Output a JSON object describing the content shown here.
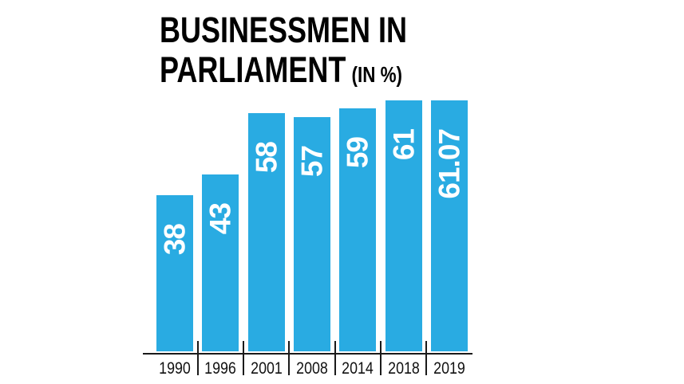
{
  "title": {
    "line1": "BUSINESSMEN IN",
    "line2": "PARLIAMENT",
    "suffix": "(IN %)"
  },
  "chart_data": {
    "type": "bar",
    "title": "BUSINESSMEN IN PARLIAMENT (IN %)",
    "categories": [
      "1990",
      "1996",
      "2001",
      "2008",
      "2014",
      "2018",
      "2019"
    ],
    "values": [
      38,
      43,
      58,
      57,
      59,
      61,
      61.07
    ],
    "value_labels": [
      "38",
      "43",
      "58",
      "57",
      "59",
      "61",
      "61.07"
    ],
    "xlabel": "",
    "ylabel": "",
    "ylim": [
      0,
      65
    ],
    "grid": false,
    "legend": false,
    "orientation": "vertical",
    "value_label_rotation": -90,
    "colors": {
      "bar": "#29abe2",
      "value_label": "#ffffff",
      "axis": "#1a1a1a",
      "title": "#000000",
      "background": "#ffffff"
    }
  }
}
